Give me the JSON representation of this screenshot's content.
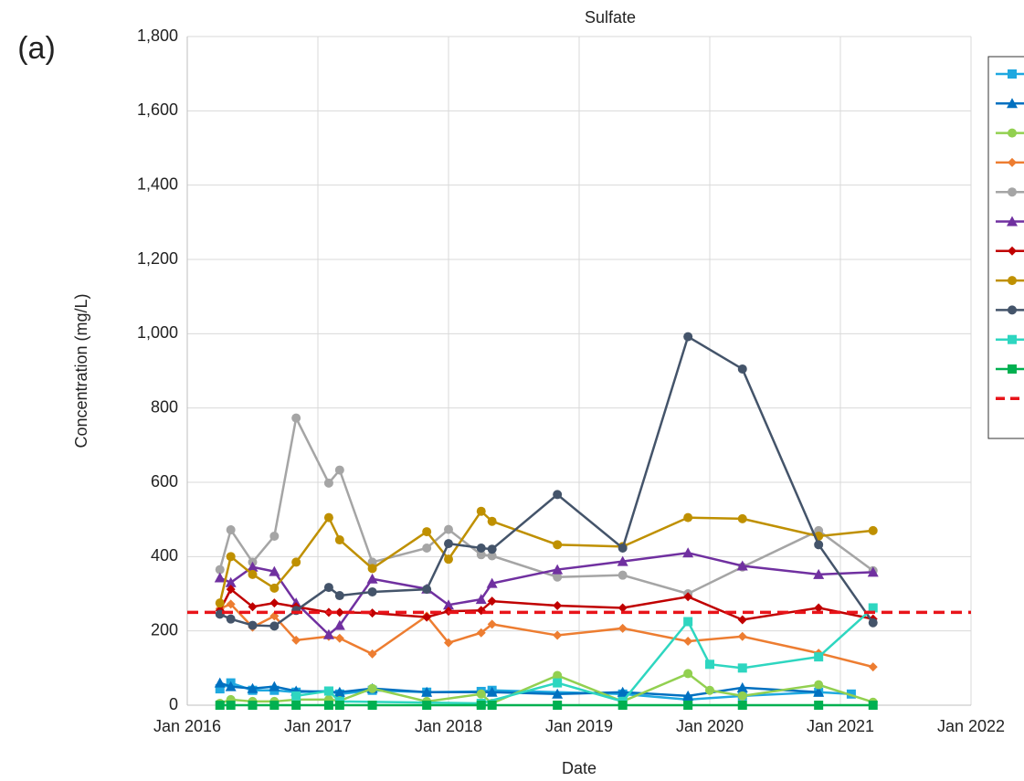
{
  "chart_data": {
    "type": "line",
    "title": "Sulfate",
    "panel_label": "(a)",
    "x_label": "Date",
    "y_label": "Concentration (mg/L)",
    "xlim": [
      "2016-01",
      "2022-01"
    ],
    "xticks": [
      {
        "value": "2016-01",
        "label": "Jan 2016"
      },
      {
        "value": "2017-01",
        "label": "Jan 2017"
      },
      {
        "value": "2018-01",
        "label": "Jan 2018"
      },
      {
        "value": "2019-01",
        "label": "Jan 2019"
      },
      {
        "value": "2020-01",
        "label": "Jan 2020"
      },
      {
        "value": "2021-01",
        "label": "Jan 2021"
      },
      {
        "value": "2022-01",
        "label": "Jan 2022"
      }
    ],
    "ylim": [
      0,
      1800
    ],
    "yticks": [
      0,
      200,
      400,
      600,
      800,
      {
        "value": 1000,
        "label": "1,000"
      },
      {
        "value": 1200,
        "label": "1,200"
      },
      {
        "value": 1400,
        "label": "1,400"
      },
      {
        "value": 1600,
        "label": "1,600"
      },
      {
        "value": 1800,
        "label": "1,800"
      }
    ],
    "grid": true,
    "legend": "right",
    "series": [
      {
        "color": "#1fa8e0",
        "marker": "square",
        "x": [
          "2016-04",
          "2016-05",
          "2016-07",
          "2016-09",
          "2016-11",
          "2017-02",
          "2017-03",
          "2017-06",
          "2017-11",
          "2018-04",
          "2018-05",
          "2019-05",
          "2019-11",
          "2020-04",
          "2020-11",
          "2021-02"
        ],
        "values": [
          44,
          60,
          40,
          40,
          35,
          38,
          30,
          40,
          35,
          37,
          40,
          30,
          15,
          25,
          35,
          30
        ]
      },
      {
        "color": "#0070c0",
        "marker": "triangle",
        "x": [
          "2016-04",
          "2016-05",
          "2016-07",
          "2016-09",
          "2016-11",
          "2017-03",
          "2017-06",
          "2017-11",
          "2018-05",
          "2018-11",
          "2019-05",
          "2019-11",
          "2020-04",
          "2020-11"
        ],
        "values": [
          60,
          50,
          45,
          50,
          38,
          35,
          45,
          35,
          35,
          30,
          35,
          25,
          47,
          35
        ]
      },
      {
        "color": "#92d050",
        "marker": "circle",
        "x": [
          "2016-04",
          "2016-05",
          "2016-07",
          "2016-09",
          "2016-11",
          "2017-02",
          "2017-03",
          "2017-06",
          "2017-11",
          "2018-04",
          "2018-05",
          "2018-11",
          "2019-05",
          "2019-11",
          "2020-01",
          "2020-04",
          "2020-11",
          "2021-04"
        ],
        "values": [
          5,
          15,
          10,
          10,
          15,
          15,
          12,
          45,
          10,
          30,
          5,
          80,
          10,
          85,
          40,
          25,
          55,
          8
        ]
      },
      {
        "color": "#ed7d31",
        "marker": "diamond",
        "x": [
          "2016-04",
          "2016-05",
          "2016-07",
          "2016-09",
          "2016-11",
          "2017-02",
          "2017-03",
          "2017-06",
          "2017-11",
          "2018-01",
          "2018-04",
          "2018-05",
          "2018-11",
          "2019-05",
          "2019-11",
          "2020-04",
          "2020-11",
          "2021-04"
        ],
        "values": [
          260,
          272,
          210,
          240,
          175,
          185,
          180,
          138,
          240,
          168,
          195,
          218,
          188,
          207,
          172,
          185,
          140,
          103
        ]
      },
      {
        "color": "#a5a5a5",
        "marker": "circle",
        "x": [
          "2016-04",
          "2016-05",
          "2016-07",
          "2016-09",
          "2016-11",
          "2017-02",
          "2017-03",
          "2017-06",
          "2017-11",
          "2018-01",
          "2018-04",
          "2018-05",
          "2018-11",
          "2019-05",
          "2019-11",
          "2020-04",
          "2020-11",
          "2021-04"
        ],
        "values": [
          365,
          472,
          385,
          455,
          773,
          598,
          633,
          385,
          423,
          473,
          405,
          402,
          345,
          350,
          300,
          372,
          470,
          362
        ]
      },
      {
        "color": "#7030a0",
        "marker": "triangle",
        "x": [
          "2016-04",
          "2016-05",
          "2016-07",
          "2016-09",
          "2016-11",
          "2017-02",
          "2017-03",
          "2017-06",
          "2017-11",
          "2018-01",
          "2018-04",
          "2018-05",
          "2018-11",
          "2019-05",
          "2019-11",
          "2020-04",
          "2020-11",
          "2021-04"
        ],
        "values": [
          343,
          330,
          372,
          360,
          275,
          190,
          215,
          340,
          313,
          270,
          285,
          328,
          365,
          387,
          410,
          375,
          352,
          358
        ]
      },
      {
        "color": "#c00000",
        "marker": "diamond",
        "x": [
          "2016-04",
          "2016-05",
          "2016-07",
          "2016-09",
          "2016-11",
          "2017-02",
          "2017-03",
          "2017-06",
          "2017-11",
          "2018-01",
          "2018-04",
          "2018-05",
          "2018-11",
          "2019-05",
          "2019-11",
          "2020-04",
          "2020-11",
          "2021-04"
        ],
        "values": [
          255,
          312,
          265,
          275,
          265,
          250,
          250,
          248,
          237,
          253,
          255,
          280,
          268,
          262,
          292,
          230,
          262,
          232
        ]
      },
      {
        "color": "#bf9000",
        "marker": "circle",
        "x": [
          "2016-04",
          "2016-05",
          "2016-07",
          "2016-09",
          "2016-11",
          "2017-02",
          "2017-03",
          "2017-06",
          "2017-11",
          "2018-01",
          "2018-04",
          "2018-05",
          "2018-11",
          "2019-05",
          "2019-11",
          "2020-04",
          "2020-11",
          "2021-04"
        ],
        "values": [
          275,
          400,
          352,
          315,
          385,
          505,
          445,
          368,
          467,
          393,
          522,
          495,
          432,
          427,
          505,
          502,
          455,
          470
        ]
      },
      {
        "color": "#44546a",
        "marker": "circle",
        "x": [
          "2016-04",
          "2016-05",
          "2016-07",
          "2016-09",
          "2016-11",
          "2017-02",
          "2017-03",
          "2017-06",
          "2017-11",
          "2018-01",
          "2018-04",
          "2018-05",
          "2018-11",
          "2019-05",
          "2019-11",
          "2020-04",
          "2020-11",
          "2021-04"
        ],
        "values": [
          245,
          232,
          215,
          213,
          255,
          317,
          295,
          305,
          312,
          435,
          423,
          420,
          567,
          423,
          992,
          905,
          432,
          222
        ]
      },
      {
        "color": "#2ed6c0",
        "marker": "square",
        "x": [
          "2016-11",
          "2017-02",
          "2017-03",
          "2018-04",
          "2018-11",
          "2019-05",
          "2019-11",
          "2020-01",
          "2020-04",
          "2020-11",
          "2021-04"
        ],
        "values": [
          25,
          38,
          10,
          5,
          60,
          10,
          225,
          110,
          100,
          130,
          262
        ]
      },
      {
        "color": "#00b050",
        "marker": "square",
        "x": [
          "2016-04",
          "2016-05",
          "2016-07",
          "2016-09",
          "2016-11",
          "2017-02",
          "2017-03",
          "2017-06",
          "2017-11",
          "2018-04",
          "2018-05",
          "2018-11",
          "2019-05",
          "2019-11",
          "2020-04",
          "2020-11",
          "2021-04"
        ],
        "values": [
          0,
          0,
          0,
          0,
          0,
          0,
          0,
          0,
          0,
          0,
          0,
          0,
          0,
          0,
          0,
          0,
          0
        ]
      },
      {
        "color": "#e8141a",
        "marker": "none",
        "dashed": true,
        "x": [
          "2016-01",
          "2022-01"
        ],
        "values": [
          250,
          250
        ]
      }
    ]
  }
}
